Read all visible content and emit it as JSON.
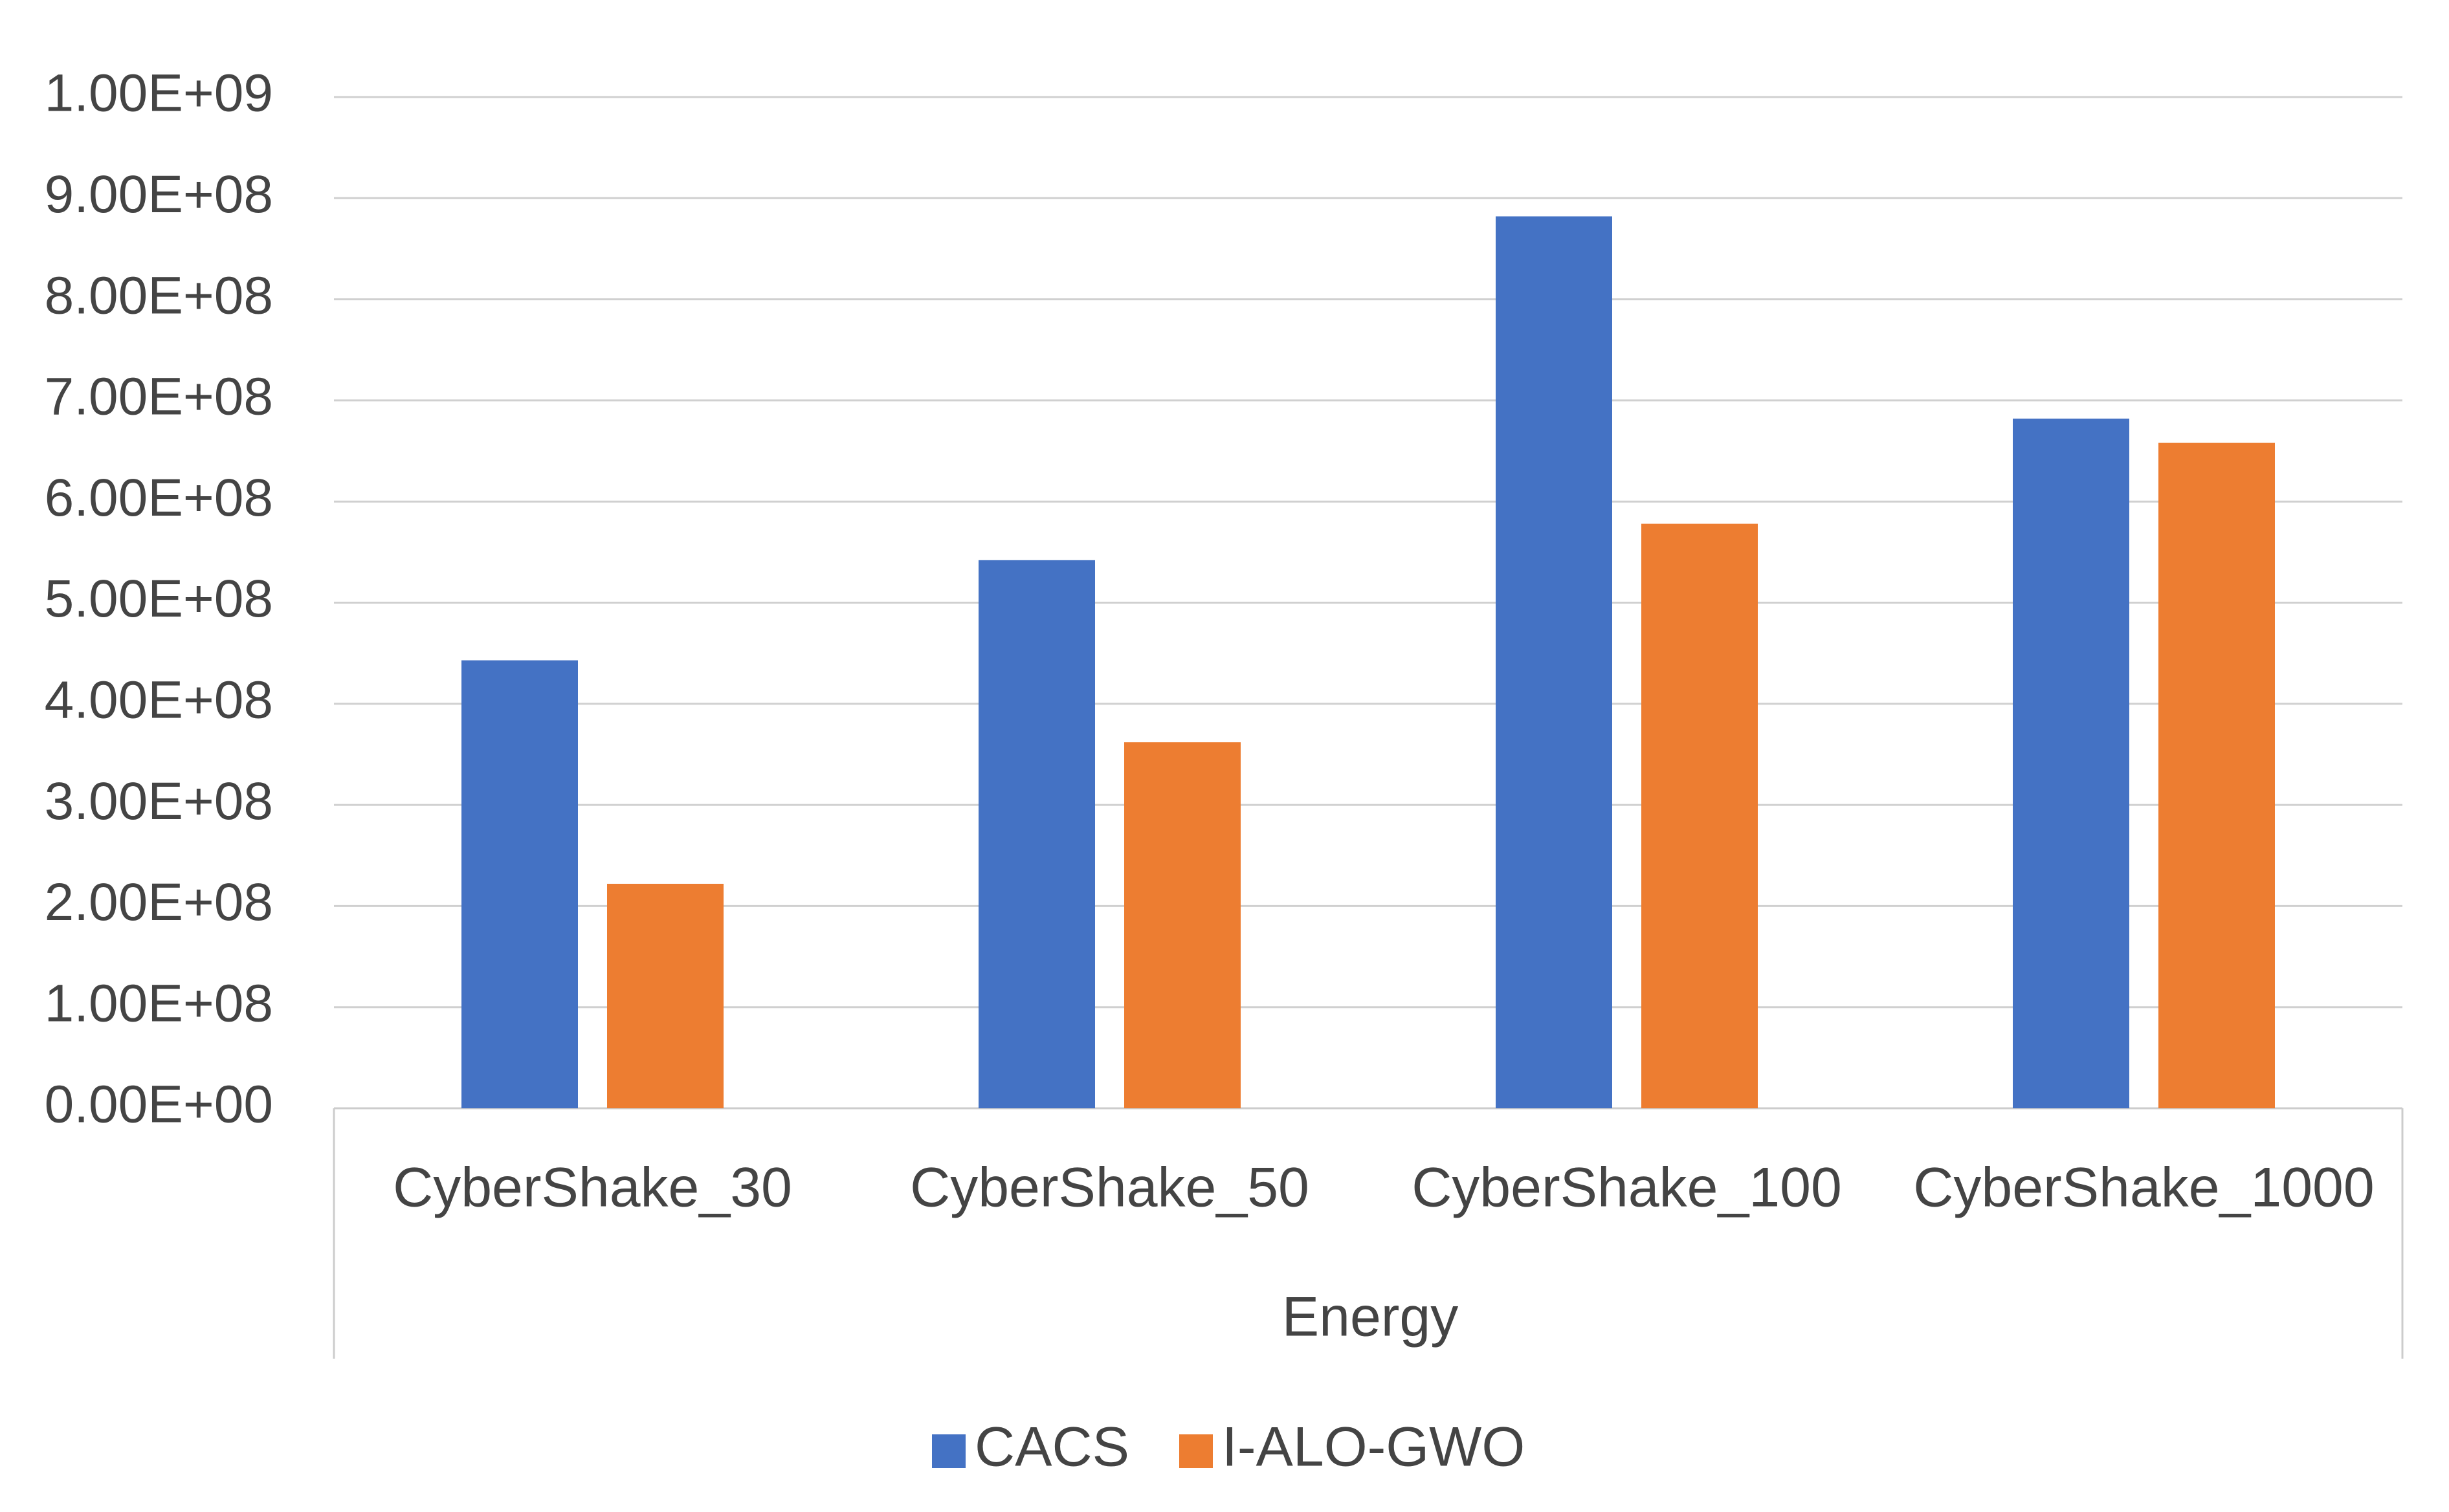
{
  "chart_data": {
    "type": "bar",
    "categories": [
      "CyberShake_30",
      "CyberShake_50",
      "CyberShake_100",
      "CyberShake_1000"
    ],
    "group_label": "Energy",
    "series": [
      {
        "name": "CACS",
        "values": [
          443000000,
          542000000,
          882000000,
          682000000
        ],
        "color": "#4472C4"
      },
      {
        "name": "I-ALO-GWO",
        "values": [
          222000000,
          362000000,
          578000000,
          658000000
        ],
        "color": "#ED7D31"
      }
    ],
    "ylim": [
      0,
      1000000000
    ],
    "yticks": [
      0,
      100000000,
      200000000,
      300000000,
      400000000,
      500000000,
      600000000,
      700000000,
      800000000,
      900000000,
      1000000000
    ],
    "ytick_labels": [
      "0.00E+00",
      "1.00E+08",
      "2.00E+08",
      "3.00E+08",
      "4.00E+08",
      "5.00E+08",
      "6.00E+08",
      "7.00E+08",
      "8.00E+08",
      "9.00E+08",
      "1.00E+09"
    ],
    "grid": true,
    "legend_position": "bottom",
    "title": "",
    "xlabel": "",
    "ylabel": ""
  }
}
